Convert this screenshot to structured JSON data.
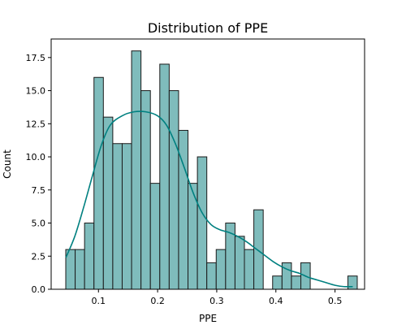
{
  "chart_data": {
    "type": "bar",
    "title": "Distribution of PPE",
    "xlabel": "PPE",
    "ylabel": "Count",
    "xlim": [
      0.02,
      0.55
    ],
    "ylim": [
      0,
      18.9
    ],
    "xticks": [
      0.1,
      0.2,
      0.3,
      0.4,
      0.5
    ],
    "xtick_labels": [
      "0.1",
      "0.2",
      "0.3",
      "0.4",
      "0.5"
    ],
    "yticks": [
      0,
      2.5,
      5,
      7.5,
      10,
      12.5,
      15,
      17.5
    ],
    "ytick_labels": [
      "0.0",
      "2.5",
      "5.0",
      "7.5",
      "10.0",
      "12.5",
      "15.0",
      "17.5"
    ],
    "bin_edges": [
      0.0447,
      0.0606,
      0.0765,
      0.0924,
      0.1083,
      0.1242,
      0.1401,
      0.156,
      0.1719,
      0.1878,
      0.2037,
      0.2196,
      0.2355,
      0.2514,
      0.2673,
      0.2832,
      0.2991,
      0.315,
      0.3309,
      0.3468,
      0.3627,
      0.3786,
      0.3945,
      0.4104,
      0.4263,
      0.4422,
      0.4581,
      0.474,
      0.4899,
      0.5058,
      0.5217,
      0.5376
    ],
    "counts": [
      3,
      3,
      5,
      16,
      13,
      11,
      11,
      18,
      15,
      8,
      17,
      15,
      12,
      8,
      10,
      2,
      3,
      5,
      4,
      3,
      6,
      0,
      1,
      2,
      1,
      2,
      0,
      0,
      0,
      0,
      1
    ],
    "kde": {
      "x": [
        0.045,
        0.06,
        0.075,
        0.09,
        0.105,
        0.12,
        0.14,
        0.16,
        0.18,
        0.2,
        0.215,
        0.23,
        0.245,
        0.26,
        0.275,
        0.29,
        0.305,
        0.32,
        0.335,
        0.35,
        0.365,
        0.38,
        0.395,
        0.41,
        0.425,
        0.44,
        0.455,
        0.47,
        0.485,
        0.5,
        0.515,
        0.53
      ],
      "y": [
        2.4,
        4.0,
        6.2,
        8.6,
        10.9,
        12.4,
        13.1,
        13.4,
        13.4,
        13.1,
        12.4,
        11.0,
        9.2,
        7.3,
        5.8,
        4.9,
        4.5,
        4.3,
        4.0,
        3.6,
        3.1,
        2.6,
        2.1,
        1.7,
        1.4,
        1.2,
        0.9,
        0.7,
        0.5,
        0.3,
        0.2,
        0.2
      ]
    },
    "colors": {
      "bar_fill": "#7fbcbc",
      "bar_edge": "#1a1a1a",
      "kde_line": "#008080"
    },
    "grid": false,
    "legend": "none"
  }
}
